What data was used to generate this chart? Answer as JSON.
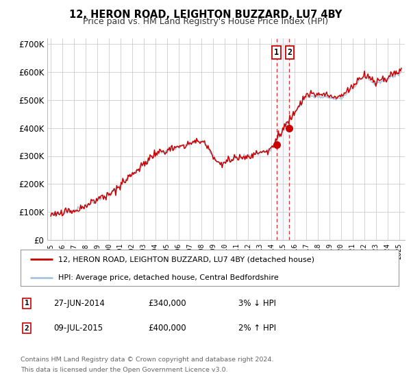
{
  "title": "12, HERON ROAD, LEIGHTON BUZZARD, LU7 4BY",
  "subtitle": "Price paid vs. HM Land Registry's House Price Index (HPI)",
  "legend_line1": "12, HERON ROAD, LEIGHTON BUZZARD, LU7 4BY (detached house)",
  "legend_line2": "HPI: Average price, detached house, Central Bedfordshire",
  "sale1_label": "1",
  "sale1_date": "27-JUN-2014",
  "sale1_price": "£340,000",
  "sale1_hpi": "3% ↓ HPI",
  "sale1_year": 2014.49,
  "sale1_value": 340000,
  "sale2_label": "2",
  "sale2_date": "09-JUL-2015",
  "sale2_price": "£400,000",
  "sale2_hpi": "2% ↑ HPI",
  "sale2_year": 2015.52,
  "sale2_value": 400000,
  "footer1": "Contains HM Land Registry data © Crown copyright and database right 2024.",
  "footer2": "This data is licensed under the Open Government Licence v3.0.",
  "hpi_color": "#a8c4e0",
  "price_color": "#cc0000",
  "marker_color": "#cc0000",
  "background_color": "#ffffff",
  "grid_color": "#cccccc",
  "ylim": [
    0,
    720000
  ],
  "yticks": [
    0,
    100000,
    200000,
    300000,
    400000,
    500000,
    600000,
    700000
  ],
  "ytick_labels": [
    "£0",
    "£100K",
    "£200K",
    "£300K",
    "£400K",
    "£500K",
    "£600K",
    "£700K"
  ],
  "xlim_start": 1994.7,
  "xlim_end": 2025.5
}
